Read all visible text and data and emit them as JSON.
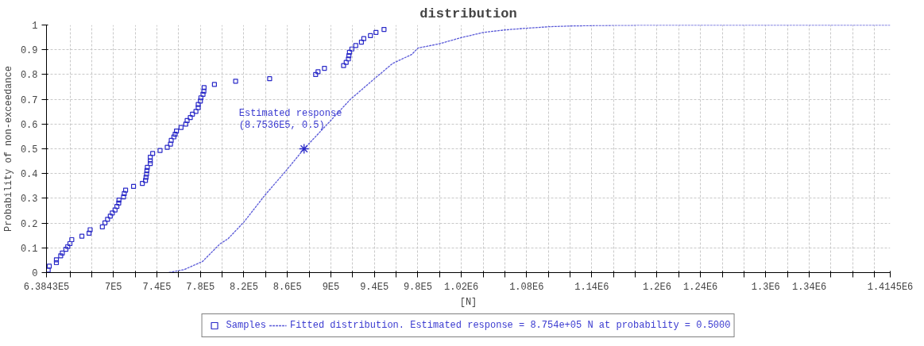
{
  "chart_data": {
    "type": "scatter",
    "title": "distribution",
    "xlabel": "[N]",
    "ylabel": "Probability of non-exceedance",
    "xlim": [
      638430,
      1414500
    ],
    "ylim": [
      0,
      1
    ],
    "xticks": [
      {
        "value": 638430,
        "label": "6.3843E5"
      },
      {
        "value": 660000,
        "label": null
      },
      {
        "value": 680000,
        "label": null
      },
      {
        "value": 700000,
        "label": "7E5"
      },
      {
        "value": 720000,
        "label": null
      },
      {
        "value": 740000,
        "label": "7.4E5"
      },
      {
        "value": 760000,
        "label": null
      },
      {
        "value": 780000,
        "label": "7.8E5"
      },
      {
        "value": 800000,
        "label": null
      },
      {
        "value": 820000,
        "label": "8.2E5"
      },
      {
        "value": 840000,
        "label": null
      },
      {
        "value": 860000,
        "label": "8.6E5"
      },
      {
        "value": 880000,
        "label": null
      },
      {
        "value": 900000,
        "label": "9E5"
      },
      {
        "value": 920000,
        "label": null
      },
      {
        "value": 940000,
        "label": "9.4E5"
      },
      {
        "value": 960000,
        "label": null
      },
      {
        "value": 980000,
        "label": "9.8E5"
      },
      {
        "value": 1000000,
        "label": null
      },
      {
        "value": 1020000,
        "label": "1.02E6"
      },
      {
        "value": 1040000,
        "label": null
      },
      {
        "value": 1060000,
        "label": null
      },
      {
        "value": 1080000,
        "label": "1.08E6"
      },
      {
        "value": 1100000,
        "label": null
      },
      {
        "value": 1120000,
        "label": null
      },
      {
        "value": 1140000,
        "label": "1.14E6"
      },
      {
        "value": 1160000,
        "label": null
      },
      {
        "value": 1180000,
        "label": null
      },
      {
        "value": 1200000,
        "label": "1.2E6"
      },
      {
        "value": 1220000,
        "label": null
      },
      {
        "value": 1240000,
        "label": "1.24E6"
      },
      {
        "value": 1260000,
        "label": null
      },
      {
        "value": 1280000,
        "label": null
      },
      {
        "value": 1300000,
        "label": "1.3E6"
      },
      {
        "value": 1320000,
        "label": null
      },
      {
        "value": 1340000,
        "label": "1.34E6"
      },
      {
        "value": 1360000,
        "label": null
      },
      {
        "value": 1380000,
        "label": null
      },
      {
        "value": 1400000,
        "label": null
      },
      {
        "value": 1414500,
        "label": "1.4145E6"
      }
    ],
    "yticks": [
      0,
      0.1,
      0.2,
      0.3,
      0.4,
      0.5,
      0.6,
      0.7,
      0.8,
      0.9,
      1
    ],
    "grid": true,
    "legend": "bottom",
    "annotations": [
      {
        "text": "Estimated response\n(8.7536E5, 0.5)",
        "x": 875360,
        "y": 0.5
      }
    ],
    "series": [
      {
        "name": "Samples",
        "type": "scatter",
        "marker": "square",
        "color": "#2b2bc8",
        "x": [
          640000,
          641000,
          647560,
          647560,
          651500,
          653000,
          656300,
          658000,
          660000,
          661700,
          671000,
          677600,
          678600,
          689800,
          692200,
          694600,
          697100,
          699000,
          701500,
          703200,
          704900,
          705100,
          709300,
          710000,
          711200,
          718500,
          726600,
          729500,
          730000,
          730500,
          730800,
          731200,
          733900,
          733900,
          733900,
          736100,
          742900,
          749500,
          752500,
          753200,
          755600,
          756800,
          758000,
          762200,
          766600,
          767800,
          770700,
          772700,
          775900,
          778000,
          778000,
          780000,
          780500,
          782400,
          783200,
          783400,
          792900,
          812400,
          843700,
          886000,
          888200,
          894100,
          911700,
          914100,
          916100,
          916600,
          917100,
          919300,
          922900,
          928100,
          930300,
          936400,
          941500,
          948900
        ],
        "values": [
          0.01,
          0.026,
          0.04,
          0.052,
          0.068,
          0.079,
          0.094,
          0.105,
          0.117,
          0.133,
          0.147,
          0.159,
          0.173,
          0.185,
          0.201,
          0.215,
          0.228,
          0.241,
          0.253,
          0.267,
          0.281,
          0.293,
          0.306,
          0.319,
          0.333,
          0.348,
          0.36,
          0.372,
          0.385,
          0.398,
          0.412,
          0.425,
          0.44,
          0.452,
          0.466,
          0.481,
          0.493,
          0.506,
          0.519,
          0.534,
          0.548,
          0.559,
          0.572,
          0.586,
          0.6,
          0.614,
          0.626,
          0.64,
          0.651,
          0.666,
          0.679,
          0.693,
          0.706,
          0.72,
          0.733,
          0.747,
          0.76,
          0.773,
          0.783,
          0.8,
          0.811,
          0.825,
          0.836,
          0.849,
          0.863,
          0.876,
          0.89,
          0.903,
          0.917,
          0.931,
          0.945,
          0.957,
          0.97,
          0.982
        ]
      },
      {
        "name": "Fitted distribution. Estimated response = 8.754e+05 N at probability = 0.5000",
        "type": "line",
        "line_style": "dashed",
        "marker": "none",
        "color": "#5a5ad8",
        "x": [
          751000,
          765000,
          782000,
          798000,
          805300,
          820000,
          839600,
          859100,
          875360,
          895800,
          917800,
          939800,
          956900,
          974400,
          980100,
          998800,
          1020000,
          1040200,
          1059800,
          1080000,
          1100000,
          1120700,
          1145000,
          1200000,
          1414500
        ],
        "values": [
          0,
          0.012,
          0.045,
          0.116,
          0.136,
          0.204,
          0.314,
          0.413,
          0.5,
          0.595,
          0.699,
          0.782,
          0.845,
          0.881,
          0.907,
          0.923,
          0.949,
          0.97,
          0.98,
          0.987,
          0.993,
          0.996,
          0.998,
          1,
          1
        ]
      }
    ]
  }
}
